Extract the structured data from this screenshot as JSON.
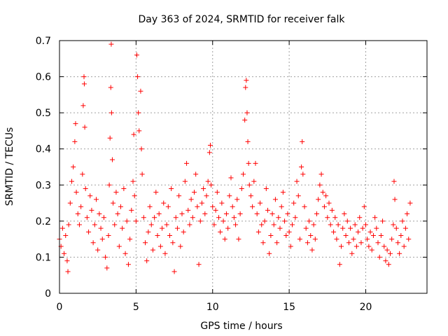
{
  "chart_data": {
    "type": "scatter",
    "title": "Day 363 of 2024, SRMTID for receiver falk",
    "xlabel": "GPS time / hours",
    "ylabel": "SRMTID / TECUs",
    "xlim": [
      0,
      24
    ],
    "ylim": [
      0,
      0.7
    ],
    "xticks": [
      0,
      5,
      10,
      15,
      20
    ],
    "xtick_labels": [
      "0",
      "5",
      "10",
      "15",
      "20"
    ],
    "yticks": [
      0,
      0.1,
      0.2,
      0.3,
      0.4,
      0.5,
      0.6,
      0.7
    ],
    "ytick_labels": [
      "0",
      "0.1",
      "0.2",
      "0.3",
      "0.4",
      "0.5",
      "0.6",
      "0.7"
    ],
    "grid": true,
    "marker": "+",
    "color": "#ff0000",
    "series": [
      {
        "name": "falk",
        "points": [
          [
            0.0,
            0.15
          ],
          [
            0.1,
            0.13
          ],
          [
            0.2,
            0.18
          ],
          [
            0.3,
            0.11
          ],
          [
            0.4,
            0.16
          ],
          [
            0.5,
            0.09
          ],
          [
            0.55,
            0.06
          ],
          [
            0.6,
            0.19
          ],
          [
            0.7,
            0.25
          ],
          [
            0.8,
            0.31
          ],
          [
            0.9,
            0.35
          ],
          [
            1.0,
            0.42
          ],
          [
            1.05,
            0.47
          ],
          [
            1.1,
            0.28
          ],
          [
            1.2,
            0.22
          ],
          [
            1.3,
            0.19
          ],
          [
            1.4,
            0.24
          ],
          [
            1.5,
            0.33
          ],
          [
            1.55,
            0.52
          ],
          [
            1.6,
            0.6
          ],
          [
            1.62,
            0.58
          ],
          [
            1.65,
            0.46
          ],
          [
            1.7,
            0.29
          ],
          [
            1.8,
            0.21
          ],
          [
            1.9,
            0.17
          ],
          [
            2.0,
            0.27
          ],
          [
            2.1,
            0.23
          ],
          [
            2.2,
            0.14
          ],
          [
            2.3,
            0.19
          ],
          [
            2.4,
            0.26
          ],
          [
            2.5,
            0.12
          ],
          [
            2.6,
            0.22
          ],
          [
            2.7,
            0.18
          ],
          [
            2.8,
            0.15
          ],
          [
            2.9,
            0.21
          ],
          [
            3.0,
            0.1
          ],
          [
            3.1,
            0.07
          ],
          [
            3.2,
            0.16
          ],
          [
            3.25,
            0.3
          ],
          [
            3.3,
            0.43
          ],
          [
            3.35,
            0.57
          ],
          [
            3.38,
            0.69
          ],
          [
            3.4,
            0.5
          ],
          [
            3.45,
            0.37
          ],
          [
            3.5,
            0.25
          ],
          [
            3.6,
            0.19
          ],
          [
            3.7,
            0.28
          ],
          [
            3.8,
            0.22
          ],
          [
            3.9,
            0.13
          ],
          [
            4.0,
            0.24
          ],
          [
            4.1,
            0.18
          ],
          [
            4.2,
            0.29
          ],
          [
            4.3,
            0.11
          ],
          [
            4.4,
            0.2
          ],
          [
            4.5,
            0.08
          ],
          [
            4.6,
            0.15
          ],
          [
            4.7,
            0.23
          ],
          [
            4.8,
            0.31
          ],
          [
            4.85,
            0.44
          ],
          [
            4.9,
            0.27
          ],
          [
            5.0,
            0.2
          ],
          [
            5.05,
            0.66
          ],
          [
            5.1,
            0.6
          ],
          [
            5.15,
            0.5
          ],
          [
            5.2,
            0.45
          ],
          [
            5.3,
            0.56
          ],
          [
            5.35,
            0.4
          ],
          [
            5.4,
            0.33
          ],
          [
            5.5,
            0.21
          ],
          [
            5.6,
            0.14
          ],
          [
            5.7,
            0.09
          ],
          [
            5.8,
            0.17
          ],
          [
            5.9,
            0.24
          ],
          [
            6.0,
            0.19
          ],
          [
            6.1,
            0.12
          ],
          [
            6.2,
            0.21
          ],
          [
            6.3,
            0.28
          ],
          [
            6.4,
            0.16
          ],
          [
            6.5,
            0.22
          ],
          [
            6.6,
            0.13
          ],
          [
            6.7,
            0.18
          ],
          [
            6.8,
            0.25
          ],
          [
            6.9,
            0.11
          ],
          [
            7.0,
            0.19
          ],
          [
            7.1,
            0.24
          ],
          [
            7.2,
            0.16
          ],
          [
            7.3,
            0.29
          ],
          [
            7.4,
            0.14
          ],
          [
            7.5,
            0.06
          ],
          [
            7.6,
            0.21
          ],
          [
            7.7,
            0.18
          ],
          [
            7.8,
            0.27
          ],
          [
            7.9,
            0.13
          ],
          [
            8.0,
            0.22
          ],
          [
            8.1,
            0.17
          ],
          [
            8.2,
            0.31
          ],
          [
            8.3,
            0.36
          ],
          [
            8.4,
            0.23
          ],
          [
            8.5,
            0.19
          ],
          [
            8.6,
            0.26
          ],
          [
            8.7,
            0.21
          ],
          [
            8.8,
            0.28
          ],
          [
            8.9,
            0.33
          ],
          [
            9.0,
            0.24
          ],
          [
            9.1,
            0.08
          ],
          [
            9.2,
            0.2
          ],
          [
            9.3,
            0.25
          ],
          [
            9.4,
            0.29
          ],
          [
            9.5,
            0.22
          ],
          [
            9.6,
            0.27
          ],
          [
            9.7,
            0.31
          ],
          [
            9.8,
            0.39
          ],
          [
            9.85,
            0.41
          ],
          [
            9.9,
            0.3
          ],
          [
            10.0,
            0.24
          ],
          [
            10.1,
            0.19
          ],
          [
            10.2,
            0.23
          ],
          [
            10.3,
            0.28
          ],
          [
            10.4,
            0.21
          ],
          [
            10.5,
            0.17
          ],
          [
            10.6,
            0.25
          ],
          [
            10.7,
            0.2
          ],
          [
            10.8,
            0.15
          ],
          [
            10.9,
            0.22
          ],
          [
            11.0,
            0.18
          ],
          [
            11.1,
            0.27
          ],
          [
            11.2,
            0.32
          ],
          [
            11.3,
            0.24
          ],
          [
            11.4,
            0.21
          ],
          [
            11.5,
            0.19
          ],
          [
            11.6,
            0.26
          ],
          [
            11.7,
            0.15
          ],
          [
            11.8,
            0.22
          ],
          [
            11.9,
            0.29
          ],
          [
            12.0,
            0.33
          ],
          [
            12.1,
            0.48
          ],
          [
            12.15,
            0.57
          ],
          [
            12.2,
            0.59
          ],
          [
            12.25,
            0.5
          ],
          [
            12.3,
            0.42
          ],
          [
            12.35,
            0.36
          ],
          [
            12.4,
            0.3
          ],
          [
            12.5,
            0.27
          ],
          [
            12.6,
            0.24
          ],
          [
            12.7,
            0.31
          ],
          [
            12.8,
            0.36
          ],
          [
            12.9,
            0.22
          ],
          [
            13.0,
            0.17
          ],
          [
            13.1,
            0.25
          ],
          [
            13.2,
            0.19
          ],
          [
            13.3,
            0.14
          ],
          [
            13.4,
            0.2
          ],
          [
            13.5,
            0.29
          ],
          [
            13.6,
            0.23
          ],
          [
            13.7,
            0.11
          ],
          [
            13.8,
            0.16
          ],
          [
            13.9,
            0.22
          ],
          [
            14.0,
            0.19
          ],
          [
            14.1,
            0.26
          ],
          [
            14.2,
            0.14
          ],
          [
            14.3,
            0.21
          ],
          [
            14.4,
            0.18
          ],
          [
            14.5,
            0.24
          ],
          [
            14.6,
            0.28
          ],
          [
            14.7,
            0.2
          ],
          [
            14.8,
            0.16
          ],
          [
            14.9,
            0.22
          ],
          [
            15.0,
            0.17
          ],
          [
            15.1,
            0.13
          ],
          [
            15.2,
            0.19
          ],
          [
            15.3,
            0.25
          ],
          [
            15.4,
            0.21
          ],
          [
            15.5,
            0.31
          ],
          [
            15.6,
            0.27
          ],
          [
            15.7,
            0.15
          ],
          [
            15.8,
            0.35
          ],
          [
            15.85,
            0.42
          ],
          [
            15.9,
            0.33
          ],
          [
            16.0,
            0.24
          ],
          [
            16.1,
            0.18
          ],
          [
            16.2,
            0.14
          ],
          [
            16.3,
            0.2
          ],
          [
            16.4,
            0.16
          ],
          [
            16.5,
            0.12
          ],
          [
            16.6,
            0.19
          ],
          [
            16.7,
            0.15
          ],
          [
            16.8,
            0.22
          ],
          [
            16.9,
            0.26
          ],
          [
            17.0,
            0.3
          ],
          [
            17.1,
            0.33
          ],
          [
            17.2,
            0.28
          ],
          [
            17.3,
            0.24
          ],
          [
            17.4,
            0.27
          ],
          [
            17.5,
            0.21
          ],
          [
            17.6,
            0.25
          ],
          [
            17.7,
            0.19
          ],
          [
            17.8,
            0.23
          ],
          [
            17.9,
            0.17
          ],
          [
            18.0,
            0.21
          ],
          [
            18.1,
            0.15
          ],
          [
            18.2,
            0.19
          ],
          [
            18.3,
            0.08
          ],
          [
            18.4,
            0.13
          ],
          [
            18.5,
            0.18
          ],
          [
            18.6,
            0.22
          ],
          [
            18.7,
            0.16
          ],
          [
            18.8,
            0.2
          ],
          [
            18.9,
            0.14
          ],
          [
            19.0,
            0.18
          ],
          [
            19.1,
            0.11
          ],
          [
            19.2,
            0.15
          ],
          [
            19.3,
            0.19
          ],
          [
            19.4,
            0.13
          ],
          [
            19.5,
            0.17
          ],
          [
            19.6,
            0.21
          ],
          [
            19.7,
            0.14
          ],
          [
            19.8,
            0.18
          ],
          [
            19.9,
            0.24
          ],
          [
            20.0,
            0.19
          ],
          [
            20.1,
            0.15
          ],
          [
            20.2,
            0.13
          ],
          [
            20.3,
            0.17
          ],
          [
            20.4,
            0.12
          ],
          [
            20.5,
            0.16
          ],
          [
            20.6,
            0.21
          ],
          [
            20.7,
            0.18
          ],
          [
            20.8,
            0.14
          ],
          [
            20.9,
            0.1
          ],
          [
            21.0,
            0.16
          ],
          [
            21.1,
            0.2
          ],
          [
            21.2,
            0.13
          ],
          [
            21.3,
            0.09
          ],
          [
            21.4,
            0.12
          ],
          [
            21.5,
            0.08
          ],
          [
            21.6,
            0.11
          ],
          [
            21.7,
            0.15
          ],
          [
            21.8,
            0.19
          ],
          [
            21.85,
            0.31
          ],
          [
            21.9,
            0.26
          ],
          [
            22.0,
            0.18
          ],
          [
            22.1,
            0.14
          ],
          [
            22.2,
            0.11
          ],
          [
            22.3,
            0.16
          ],
          [
            22.4,
            0.2
          ],
          [
            22.5,
            0.13
          ],
          [
            22.6,
            0.18
          ],
          [
            22.7,
            0.22
          ],
          [
            22.8,
            0.15
          ],
          [
            22.9,
            0.25
          ]
        ]
      }
    ]
  }
}
